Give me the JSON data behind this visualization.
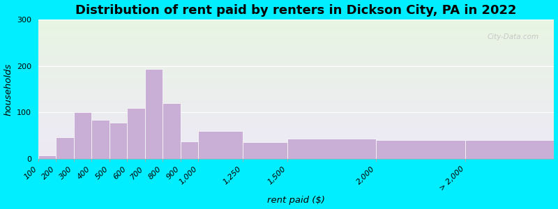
{
  "title": "Distribution of rent paid by renters in Dickson City, PA in 2022",
  "xlabel": "rent paid ($)",
  "ylabel": "households",
  "tick_labels": [
    "100",
    "200",
    "300",
    "400",
    "500",
    "600",
    "700",
    "800",
    "900",
    "1,000",
    "1,250",
    "1,500",
    "2,000",
    "> 2,000"
  ],
  "bar_values": [
    8,
    47,
    101,
    84,
    78,
    110,
    193,
    120,
    38,
    60,
    36,
    43,
    41,
    40
  ],
  "bar_edges": [
    100,
    200,
    300,
    400,
    500,
    600,
    700,
    800,
    900,
    1000,
    1250,
    1500,
    2000,
    2500,
    3000
  ],
  "bar_color": "#c9afd5",
  "bar_edge_color": "white",
  "background_outer": "#00eeff",
  "background_inner_top": "#e8f5e2",
  "background_inner_bottom": "#ede8f5",
  "ylim": [
    0,
    300
  ],
  "yticks": [
    0,
    100,
    200,
    300
  ],
  "title_fontsize": 13,
  "axis_label_fontsize": 9.5,
  "tick_fontsize": 8,
  "watermark": "City-Data.com"
}
